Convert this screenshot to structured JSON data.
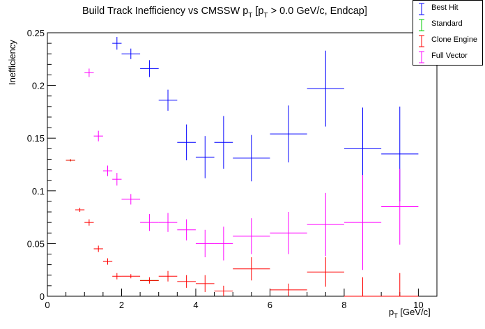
{
  "title": {
    "main": "Build Track Inefficiency vs CMSSW p",
    "sub1": "T",
    "rest1": " [p",
    "sub2": "T",
    "rest2": " > 0.0 GeV/c, Endcap]"
  },
  "axes": {
    "ylabel": "Inefficiency",
    "xlabel_main": "p",
    "xlabel_sub": "T",
    "xlabel_rest": " [GeV/c]"
  },
  "legend": [
    {
      "name": "Best Hit",
      "color": "#0000ff"
    },
    {
      "name": "Standard",
      "color": "#00cc00"
    },
    {
      "name": "Clone Engine",
      "color": "#ff0000"
    },
    {
      "name": "Full Vector",
      "color": "#ff00ff"
    }
  ],
  "chart_data": {
    "type": "scatter",
    "xlim": [
      0,
      10.5
    ],
    "ylim": [
      0,
      0.25
    ],
    "x_ticks": [
      0,
      2,
      4,
      6,
      8,
      10
    ],
    "x_tick_labels": [
      "0",
      "2",
      "4",
      "6",
      "8",
      "10"
    ],
    "y_ticks": [
      0,
      0.05,
      0.1,
      0.15,
      0.2,
      0.25
    ],
    "y_tick_labels": [
      "0",
      "0.05",
      "0.1",
      "0.15",
      "0.2",
      "0.25"
    ],
    "grid": false,
    "legend_position": "top-right",
    "series": [
      {
        "name": "Best Hit",
        "color": "#0000ff",
        "points": [
          {
            "x": 1.875,
            "xerr": 0.125,
            "y": 0.24,
            "yerr": 0.006
          },
          {
            "x": 2.25,
            "xerr": 0.25,
            "y": 0.23,
            "yerr": 0.005
          },
          {
            "x": 2.75,
            "xerr": 0.25,
            "y": 0.216,
            "yerr": 0.008
          },
          {
            "x": 3.25,
            "xerr": 0.25,
            "y": 0.186,
            "yerr": 0.01
          },
          {
            "x": 3.75,
            "xerr": 0.25,
            "y": 0.146,
            "yerr": 0.017
          },
          {
            "x": 4.25,
            "xerr": 0.25,
            "y": 0.132,
            "yerr": 0.02
          },
          {
            "x": 4.75,
            "xerr": 0.25,
            "y": 0.146,
            "yerr": 0.025
          },
          {
            "x": 5.5,
            "xerr": 0.5,
            "y": 0.131,
            "yerr": 0.022
          },
          {
            "x": 6.5,
            "xerr": 0.5,
            "y": 0.154,
            "yerr": 0.027
          },
          {
            "x": 7.5,
            "xerr": 0.5,
            "y": 0.197,
            "yerr": 0.036
          },
          {
            "x": 8.5,
            "xerr": 0.5,
            "y": 0.14,
            "yerr": 0.039
          },
          {
            "x": 9.5,
            "xerr": 0.5,
            "y": 0.135,
            "yerr": 0.045
          }
        ]
      },
      {
        "name": "Standard",
        "color": "#00cc00",
        "points": [
          {
            "x": 0.625,
            "xerr": 0.125,
            "y": 0.129,
            "yerr": 0.001
          },
          {
            "x": 2.75,
            "xerr": 0.25,
            "y": 0.015,
            "yerr": 0.001
          }
        ]
      },
      {
        "name": "Clone Engine",
        "color": "#ff0000",
        "points": [
          {
            "x": 0.625,
            "xerr": 0.125,
            "y": 0.129,
            "yerr": 0.001
          },
          {
            "x": 0.875,
            "xerr": 0.125,
            "y": 0.082,
            "yerr": 0.002
          },
          {
            "x": 1.125,
            "xerr": 0.125,
            "y": 0.07,
            "yerr": 0.003
          },
          {
            "x": 1.375,
            "xerr": 0.125,
            "y": 0.045,
            "yerr": 0.003
          },
          {
            "x": 1.625,
            "xerr": 0.125,
            "y": 0.033,
            "yerr": 0.003
          },
          {
            "x": 1.875,
            "xerr": 0.125,
            "y": 0.019,
            "yerr": 0.003
          },
          {
            "x": 2.25,
            "xerr": 0.25,
            "y": 0.019,
            "yerr": 0.002
          },
          {
            "x": 2.75,
            "xerr": 0.25,
            "y": 0.015,
            "yerr": 0.003
          },
          {
            "x": 3.25,
            "xerr": 0.25,
            "y": 0.019,
            "yerr": 0.005
          },
          {
            "x": 3.75,
            "xerr": 0.25,
            "y": 0.014,
            "yerr": 0.006
          },
          {
            "x": 4.25,
            "xerr": 0.25,
            "y": 0.012,
            "yerr": 0.008
          },
          {
            "x": 4.75,
            "xerr": 0.25,
            "y": 0.005,
            "yerr": 0.005
          },
          {
            "x": 5.5,
            "xerr": 0.5,
            "y": 0.026,
            "yerr": 0.011
          },
          {
            "x": 6.5,
            "xerr": 0.5,
            "y": 0.006,
            "yerr": 0.006
          },
          {
            "x": 7.5,
            "xerr": 0.5,
            "y": 0.023,
            "yerr": 0.014
          },
          {
            "x": 8.5,
            "xerr": 0.5,
            "y": 0.0,
            "yerr": 0.018
          },
          {
            "x": 9.5,
            "xerr": 0.5,
            "y": 0.0,
            "yerr": 0.022
          }
        ]
      },
      {
        "name": "Full Vector",
        "color": "#ff00ff",
        "points": [
          {
            "x": 1.125,
            "xerr": 0.125,
            "y": 0.212,
            "yerr": 0.004
          },
          {
            "x": 1.375,
            "xerr": 0.125,
            "y": 0.152,
            "yerr": 0.005
          },
          {
            "x": 1.625,
            "xerr": 0.125,
            "y": 0.119,
            "yerr": 0.005
          },
          {
            "x": 1.875,
            "xerr": 0.125,
            "y": 0.111,
            "yerr": 0.006
          },
          {
            "x": 2.25,
            "xerr": 0.25,
            "y": 0.092,
            "yerr": 0.005
          },
          {
            "x": 2.75,
            "xerr": 0.25,
            "y": 0.07,
            "yerr": 0.008
          },
          {
            "x": 3.25,
            "xerr": 0.25,
            "y": 0.07,
            "yerr": 0.009
          },
          {
            "x": 3.75,
            "xerr": 0.25,
            "y": 0.063,
            "yerr": 0.01
          },
          {
            "x": 4.25,
            "xerr": 0.25,
            "y": 0.05,
            "yerr": 0.013
          },
          {
            "x": 4.75,
            "xerr": 0.25,
            "y": 0.05,
            "yerr": 0.016
          },
          {
            "x": 5.5,
            "xerr": 0.5,
            "y": 0.057,
            "yerr": 0.017
          },
          {
            "x": 6.5,
            "xerr": 0.5,
            "y": 0.06,
            "yerr": 0.02
          },
          {
            "x": 7.5,
            "xerr": 0.5,
            "y": 0.068,
            "yerr": 0.03
          },
          {
            "x": 8.5,
            "xerr": 0.5,
            "y": 0.07,
            "yerr": 0.045
          },
          {
            "x": 9.5,
            "xerr": 0.5,
            "y": 0.085,
            "yerr": 0.036
          }
        ]
      }
    ]
  }
}
